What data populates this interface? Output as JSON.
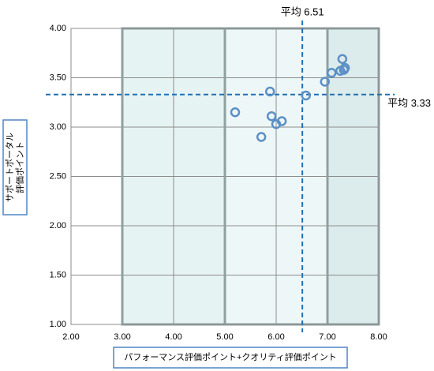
{
  "chart_data": {
    "type": "scatter",
    "xlabel": "パフォーマンス評価ポイント+クオリティ評価ポイント",
    "ylabel": [
      "サポートポータル",
      "評価ポイント"
    ],
    "xlim": [
      2,
      8
    ],
    "ylim": [
      1,
      4
    ],
    "xticks": [
      {
        "value": 2,
        "label": "2.00"
      },
      {
        "value": 3,
        "label": "3.00"
      },
      {
        "value": 4,
        "label": "4.00"
      },
      {
        "value": 5,
        "label": "5.00"
      },
      {
        "value": 6,
        "label": "6.00"
      },
      {
        "value": 7,
        "label": "7.00"
      },
      {
        "value": 8,
        "label": "8.00"
      }
    ],
    "yticks": [
      {
        "value": 1,
        "label": "1.00"
      },
      {
        "value": 1.5,
        "label": "1.50"
      },
      {
        "value": 2,
        "label": "2.00"
      },
      {
        "value": 2.5,
        "label": "2.50"
      },
      {
        "value": 3,
        "label": "3.00"
      },
      {
        "value": 3.5,
        "label": "3.50"
      },
      {
        "value": 4,
        "label": "4.00"
      }
    ],
    "grid": true,
    "regions": [
      {
        "x": [
          3,
          5
        ],
        "color": "#e6f3f3"
      },
      {
        "x": [
          5,
          7
        ],
        "color": "#eef7f7"
      },
      {
        "x": [
          7,
          8
        ],
        "color": "#dcebeb"
      }
    ],
    "averages": [
      {
        "axis": "x",
        "value": 6.51,
        "label": "平均 6.51"
      },
      {
        "axis": "y",
        "value": 3.33,
        "label": "平均 3.33"
      }
    ],
    "average_color": "#1f6fb2",
    "series": [
      {
        "color": "#5b8fc7",
        "x": [
          5.2,
          5.88,
          5.91,
          5.71,
          6.0,
          6.11,
          6.58,
          6.95,
          7.08,
          7.29,
          7.25,
          7.32,
          7.34
        ],
        "values": [
          3.15,
          3.36,
          3.11,
          2.9,
          3.03,
          3.06,
          3.32,
          3.46,
          3.55,
          3.69,
          3.57,
          3.58,
          3.6
        ]
      }
    ]
  }
}
